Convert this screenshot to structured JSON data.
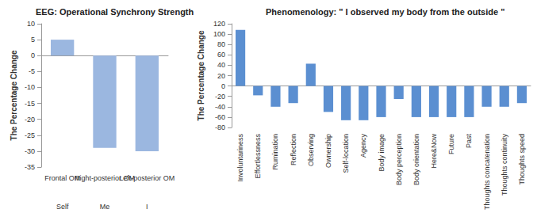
{
  "chart_data": [
    {
      "type": "bar",
      "title": "EEG: Operational Synchrony Strength",
      "categories": [
        "Frontal OM",
        "Right-posterior OM",
        "Left-posterior OM"
      ],
      "category_sublabels": [
        "Self",
        "Me",
        "I"
      ],
      "values": [
        5,
        -29,
        -30
      ],
      "color": "#9bb7e0",
      "y_label": "The Percentage Change",
      "ylim": [
        -35,
        10
      ],
      "yticks": [
        -35,
        -30,
        -25,
        -20,
        -15,
        -10,
        -5,
        0,
        5,
        10
      ],
      "grid": false
    },
    {
      "type": "bar",
      "title": "Phenomenology: \" I observed my body from the outside \"",
      "categories": [
        "Involuntariness",
        "Effortlessness",
        "Rumination",
        "Reflection",
        "Observing",
        "Ownership",
        "Self-location",
        "Agency",
        "Body image",
        "Body perception",
        "Body orientation",
        "Here&Now",
        "Future",
        "Past",
        "Thoughts concatenation",
        "Thoughts continuity",
        "Thoughts speed"
      ],
      "values": [
        108,
        -18,
        -40,
        -33,
        43,
        -50,
        -66,
        -66,
        -60,
        -25,
        -60,
        -60,
        -60,
        -60,
        -40,
        -40,
        -33
      ],
      "color": "#5b8fd1",
      "y_label": "The Percentage Change",
      "ylim": [
        -80,
        120
      ],
      "yticks": [
        -80,
        -60,
        -40,
        -20,
        0,
        20,
        40,
        60,
        80,
        100,
        120
      ],
      "grid": false
    }
  ]
}
